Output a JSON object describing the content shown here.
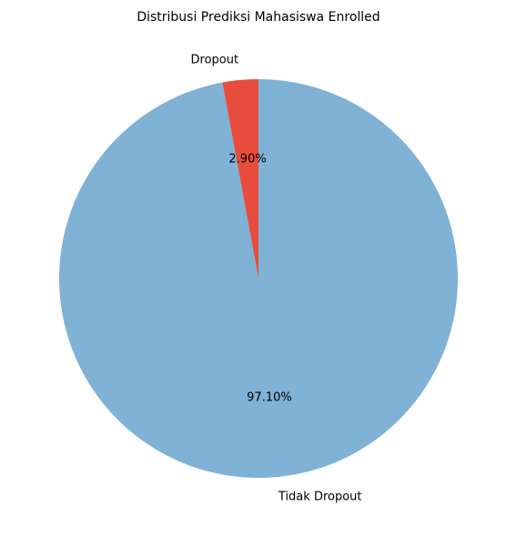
{
  "chart_data": {
    "type": "pie",
    "title": "Distribusi Prediksi Mahasiswa Enrolled",
    "categories": [
      "Dropout",
      "Tidak Dropout"
    ],
    "values": [
      2.9,
      97.1
    ],
    "percent_labels": [
      "2.90%",
      "97.10%"
    ],
    "colors": [
      "#e74c3c",
      "#7fb2d5"
    ],
    "start_angle_deg": 90,
    "direction": "counterclockwise",
    "legend": "none"
  }
}
